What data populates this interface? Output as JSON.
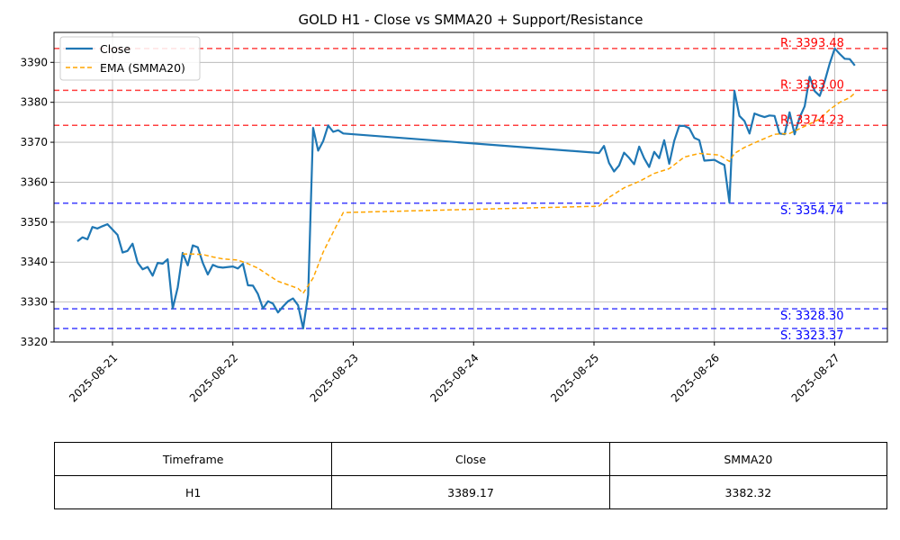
{
  "chart_data": {
    "type": "line",
    "title": "GOLD H1 - Close vs SMMA20 + Support/Resistance",
    "xlabel": "",
    "ylabel": "",
    "xlim": [
      "2025-08-20 12:20",
      "2025-08-27 10:30"
    ],
    "ylim": [
      3320,
      3397.5
    ],
    "grid": true,
    "legend_position": "top-left",
    "x_ticks": [
      "2025-08-21",
      "2025-08-22",
      "2025-08-23",
      "2025-08-24",
      "2025-08-25",
      "2025-08-26",
      "2025-08-27"
    ],
    "y_ticks": [
      3320,
      3330,
      3340,
      3350,
      3360,
      3370,
      3380,
      3390
    ],
    "series": [
      {
        "name": "Close",
        "color": "#1f77b4",
        "style": "solid",
        "points": [
          [
            "2025-08-20 17:00",
            3345.2
          ],
          [
            "2025-08-20 18:00",
            3346.2
          ],
          [
            "2025-08-20 19:00",
            3345.7
          ],
          [
            "2025-08-20 20:00",
            3348.8
          ],
          [
            "2025-08-20 21:00",
            3348.4
          ],
          [
            "2025-08-20 22:00",
            3349.0
          ],
          [
            "2025-08-20 23:00",
            3349.5
          ],
          [
            "2025-08-21 01:00",
            3346.8
          ],
          [
            "2025-08-21 02:00",
            3342.4
          ],
          [
            "2025-08-21 03:00",
            3342.8
          ],
          [
            "2025-08-21 04:00",
            3344.6
          ],
          [
            "2025-08-21 05:00",
            3339.9
          ],
          [
            "2025-08-21 06:00",
            3338.2
          ],
          [
            "2025-08-21 07:00",
            3338.8
          ],
          [
            "2025-08-21 08:00",
            3336.6
          ],
          [
            "2025-08-21 09:00",
            3339.8
          ],
          [
            "2025-08-21 10:00",
            3339.6
          ],
          [
            "2025-08-21 11:00",
            3340.7
          ],
          [
            "2025-08-21 12:00",
            3328.4
          ],
          [
            "2025-08-21 13:00",
            3333.7
          ],
          [
            "2025-08-21 14:00",
            3342.3
          ],
          [
            "2025-08-21 15:00",
            3339.2
          ],
          [
            "2025-08-21 16:00",
            3344.2
          ],
          [
            "2025-08-21 17:00",
            3343.7
          ],
          [
            "2025-08-21 18:00",
            3339.8
          ],
          [
            "2025-08-21 19:00",
            3336.9
          ],
          [
            "2025-08-21 20:00",
            3339.3
          ],
          [
            "2025-08-21 21:00",
            3338.8
          ],
          [
            "2025-08-21 22:00",
            3338.6
          ],
          [
            "2025-08-22 00:00",
            3338.9
          ],
          [
            "2025-08-22 01:00",
            3338.4
          ],
          [
            "2025-08-22 02:00",
            3339.6
          ],
          [
            "2025-08-22 03:00",
            3334.2
          ],
          [
            "2025-08-22 04:00",
            3334.1
          ],
          [
            "2025-08-22 05:00",
            3332.0
          ],
          [
            "2025-08-22 06:00",
            3328.4
          ],
          [
            "2025-08-22 07:00",
            3330.2
          ],
          [
            "2025-08-22 08:00",
            3329.6
          ],
          [
            "2025-08-22 09:00",
            3327.4
          ],
          [
            "2025-08-22 10:00",
            3328.9
          ],
          [
            "2025-08-22 11:00",
            3330.2
          ],
          [
            "2025-08-22 12:00",
            3330.9
          ],
          [
            "2025-08-22 13:00",
            3329.2
          ],
          [
            "2025-08-22 14:00",
            3323.4
          ],
          [
            "2025-08-22 15:00",
            3331.8
          ],
          [
            "2025-08-22 16:00",
            3373.6
          ],
          [
            "2025-08-22 17:00",
            3367.9
          ],
          [
            "2025-08-22 18:00",
            3370.3
          ],
          [
            "2025-08-22 19:00",
            3374.2
          ],
          [
            "2025-08-22 20:00",
            3372.6
          ],
          [
            "2025-08-22 21:00",
            3373.0
          ],
          [
            "2025-08-22 22:00",
            3372.2
          ],
          [
            "2025-08-25 01:00",
            3367.3
          ],
          [
            "2025-08-25 02:00",
            3369.1
          ],
          [
            "2025-08-25 03:00",
            3364.8
          ],
          [
            "2025-08-25 04:00",
            3362.7
          ],
          [
            "2025-08-25 05:00",
            3364.2
          ],
          [
            "2025-08-25 06:00",
            3367.4
          ],
          [
            "2025-08-25 07:00",
            3366.1
          ],
          [
            "2025-08-25 08:00",
            3364.5
          ],
          [
            "2025-08-25 09:00",
            3368.9
          ],
          [
            "2025-08-25 10:00",
            3366.0
          ],
          [
            "2025-08-25 11:00",
            3363.8
          ],
          [
            "2025-08-25 12:00",
            3367.6
          ],
          [
            "2025-08-25 13:00",
            3366.0
          ],
          [
            "2025-08-25 14:00",
            3370.5
          ],
          [
            "2025-08-25 15:00",
            3364.6
          ],
          [
            "2025-08-25 16:00",
            3370.4
          ],
          [
            "2025-08-25 17:00",
            3374.1
          ],
          [
            "2025-08-25 18:00",
            3374.1
          ],
          [
            "2025-08-25 19:00",
            3373.5
          ],
          [
            "2025-08-25 20:00",
            3371.1
          ],
          [
            "2025-08-25 21:00",
            3370.5
          ],
          [
            "2025-08-25 22:00",
            3365.4
          ],
          [
            "2025-08-26 00:00",
            3365.6
          ],
          [
            "2025-08-26 01:00",
            3364.9
          ],
          [
            "2025-08-26 02:00",
            3364.3
          ],
          [
            "2025-08-26 03:00",
            3354.9
          ],
          [
            "2025-08-26 04:00",
            3382.9
          ],
          [
            "2025-08-26 05:00",
            3376.6
          ],
          [
            "2025-08-26 06:00",
            3375.3
          ],
          [
            "2025-08-26 07:00",
            3372.2
          ],
          [
            "2025-08-26 08:00",
            3377.2
          ],
          [
            "2025-08-26 09:00",
            3376.7
          ],
          [
            "2025-08-26 10:00",
            3376.3
          ],
          [
            "2025-08-26 11:00",
            3376.7
          ],
          [
            "2025-08-26 12:00",
            3376.6
          ],
          [
            "2025-08-26 13:00",
            3372.2
          ],
          [
            "2025-08-26 14:00",
            3372.0
          ],
          [
            "2025-08-26 15:00",
            3377.5
          ],
          [
            "2025-08-26 16:00",
            3372.0
          ],
          [
            "2025-08-26 17:00",
            3376.2
          ],
          [
            "2025-08-26 18:00",
            3379.0
          ],
          [
            "2025-08-26 19:00",
            3386.4
          ],
          [
            "2025-08-26 20:00",
            3382.8
          ],
          [
            "2025-08-26 21:00",
            3381.6
          ],
          [
            "2025-08-26 22:00",
            3385.2
          ],
          [
            "2025-08-26 23:00",
            3389.7
          ],
          [
            "2025-08-27 00:00",
            3393.5
          ],
          [
            "2025-08-27 01:00",
            3392.1
          ],
          [
            "2025-08-27 02:00",
            3390.9
          ],
          [
            "2025-08-27 03:00",
            3390.8
          ],
          [
            "2025-08-27 04:00",
            3389.2
          ]
        ]
      },
      {
        "name": "EMA (SMMA20)",
        "color": "#ffa500",
        "style": "dashed",
        "points": [
          [
            "2025-08-21 14:00",
            3342.0
          ],
          [
            "2025-08-21 16:00",
            3342.0
          ],
          [
            "2025-08-21 18:00",
            3341.9
          ],
          [
            "2025-08-21 20:00",
            3341.3
          ],
          [
            "2025-08-21 22:00",
            3340.8
          ],
          [
            "2025-08-22 01:00",
            3340.5
          ],
          [
            "2025-08-22 03:00",
            3339.6
          ],
          [
            "2025-08-22 05:00",
            3338.5
          ],
          [
            "2025-08-22 07:00",
            3336.8
          ],
          [
            "2025-08-22 09:00",
            3335.2
          ],
          [
            "2025-08-22 11:00",
            3334.3
          ],
          [
            "2025-08-22 13:00",
            3333.4
          ],
          [
            "2025-08-22 14:00",
            3332.2
          ],
          [
            "2025-08-22 16:00",
            3336.0
          ],
          [
            "2025-08-22 18:00",
            3342.5
          ],
          [
            "2025-08-22 20:00",
            3347.5
          ],
          [
            "2025-08-22 22:00",
            3352.4
          ],
          [
            "2025-08-25 01:00",
            3354.0
          ],
          [
            "2025-08-25 03:00",
            3356.2
          ],
          [
            "2025-08-25 06:00",
            3358.6
          ],
          [
            "2025-08-25 09:00",
            3360.2
          ],
          [
            "2025-08-25 12:00",
            3362.2
          ],
          [
            "2025-08-25 15:00",
            3363.4
          ],
          [
            "2025-08-25 18:00",
            3366.3
          ],
          [
            "2025-08-25 21:00",
            3367.2
          ],
          [
            "2025-08-26 01:00",
            3366.8
          ],
          [
            "2025-08-26 03:00",
            3365.2
          ],
          [
            "2025-08-26 04:00",
            3367.2
          ],
          [
            "2025-08-26 06:00",
            3368.7
          ],
          [
            "2025-08-26 09:00",
            3370.4
          ],
          [
            "2025-08-26 12:00",
            3372.0
          ],
          [
            "2025-08-26 15:00",
            3372.2
          ],
          [
            "2025-08-26 18:00",
            3374.0
          ],
          [
            "2025-08-26 21:00",
            3375.8
          ],
          [
            "2025-08-26 23:00",
            3378.2
          ],
          [
            "2025-08-27 01:00",
            3380.0
          ],
          [
            "2025-08-27 03:00",
            3381.2
          ],
          [
            "2025-08-27 04:00",
            3382.3
          ]
        ]
      }
    ],
    "levels": [
      {
        "kind": "resistance",
        "value": 3393.48,
        "label": "R: 3393.48",
        "color": "#ff0000"
      },
      {
        "kind": "resistance",
        "value": 3383.0,
        "label": "R: 3383.00",
        "color": "#ff0000"
      },
      {
        "kind": "resistance",
        "value": 3374.23,
        "label": "R: 3374.23",
        "color": "#ff0000"
      },
      {
        "kind": "support",
        "value": 3354.74,
        "label": "S: 3354.74",
        "color": "#0000ff"
      },
      {
        "kind": "support",
        "value": 3328.3,
        "label": "S: 3328.30",
        "color": "#0000ff"
      },
      {
        "kind": "support",
        "value": 3323.37,
        "label": "S: 3323.37",
        "color": "#0000ff"
      }
    ]
  },
  "table": {
    "headers": [
      "Timeframe",
      "Close",
      "SMMA20"
    ],
    "row": [
      "H1",
      "3389.17",
      "3382.32"
    ]
  }
}
